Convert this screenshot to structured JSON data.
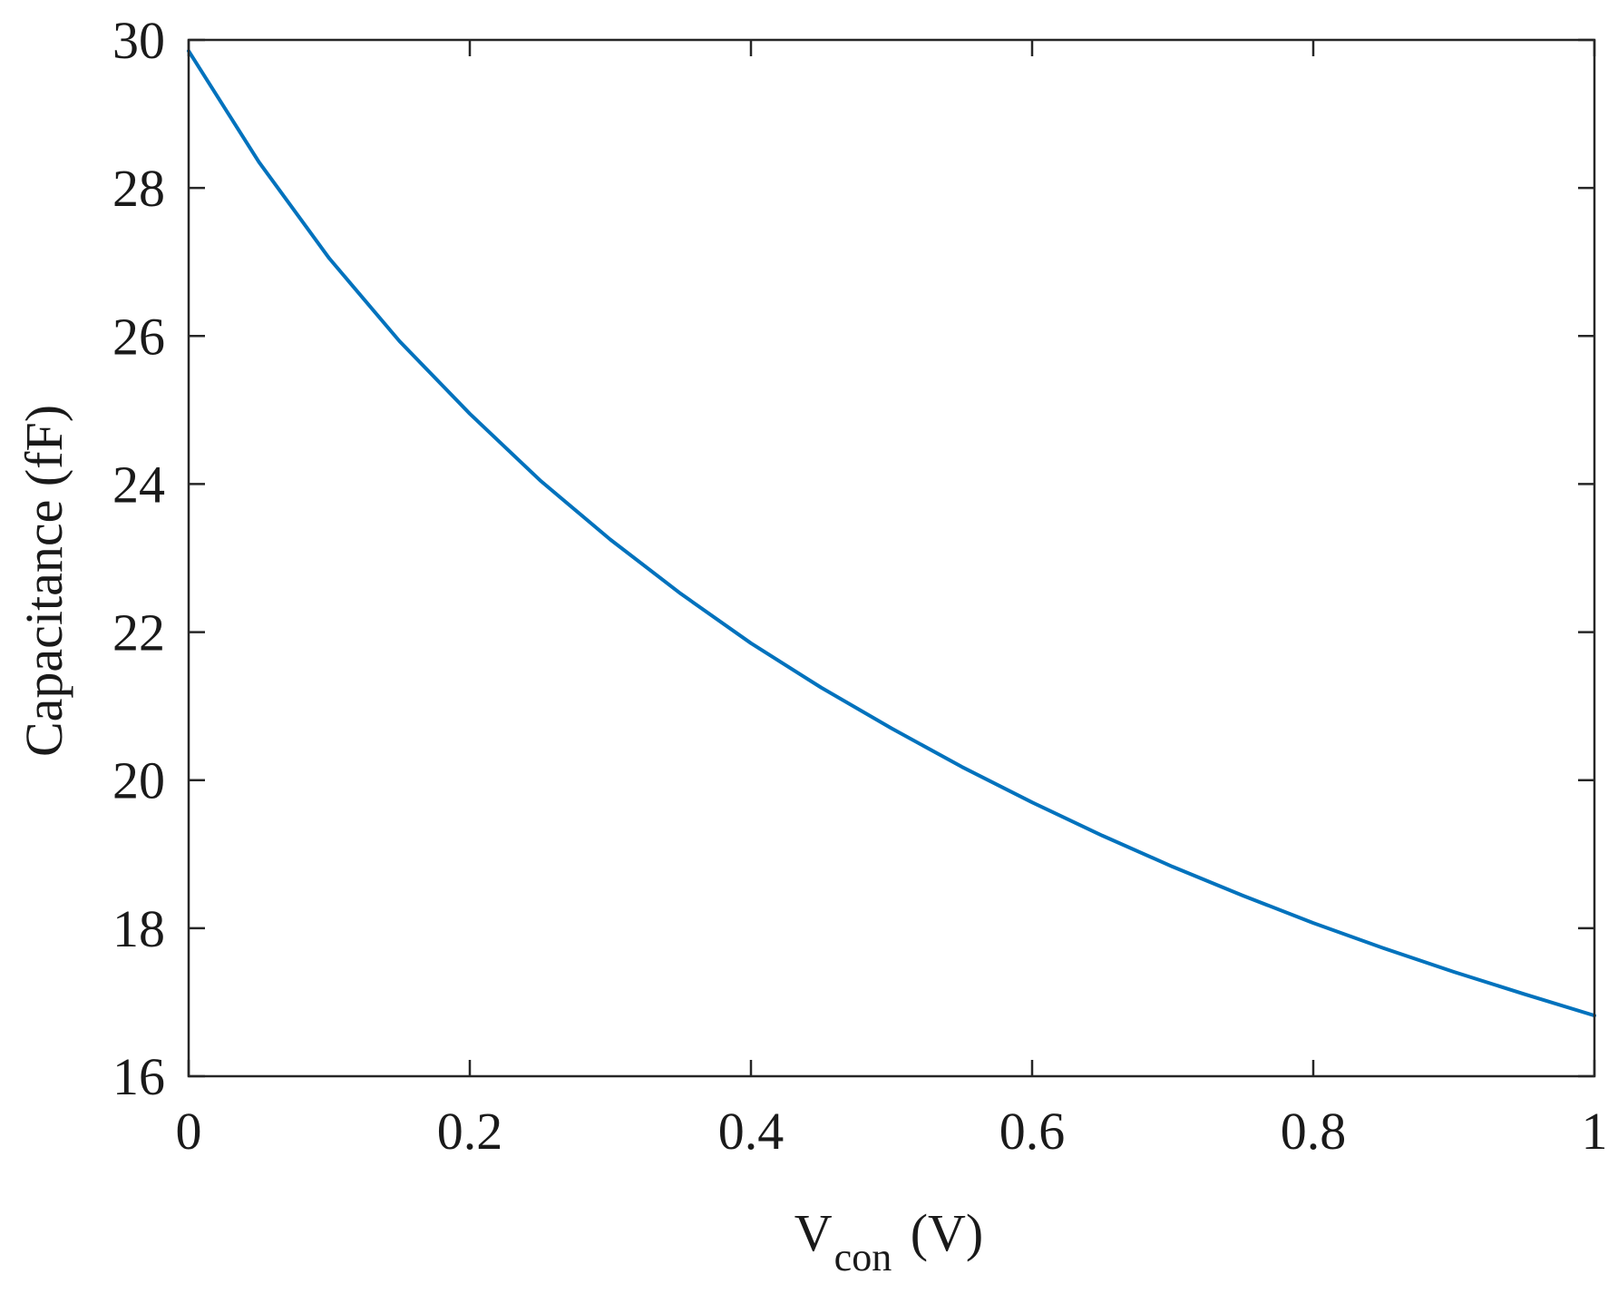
{
  "chart_data": {
    "type": "line",
    "title": "",
    "xlabel": {
      "main": "V",
      "sub": "con",
      "unit": " (V)"
    },
    "ylabel": "Capacitance (fF)",
    "xlim": [
      0,
      1
    ],
    "ylim": [
      16,
      30
    ],
    "xticks": [
      "0",
      "0.2",
      "0.4",
      "0.6",
      "0.8",
      "1"
    ],
    "yticks": [
      "16",
      "18",
      "20",
      "22",
      "24",
      "26",
      "28",
      "30"
    ],
    "grid": false,
    "legend": "none",
    "series": [
      {
        "color": "#0072BD",
        "x": [
          0,
          0.05,
          0.1,
          0.15,
          0.2,
          0.25,
          0.3,
          0.35,
          0.4,
          0.45,
          0.5,
          0.55,
          0.6,
          0.65,
          0.7,
          0.75,
          0.8,
          0.85,
          0.9,
          0.95,
          1.0
        ],
        "y": [
          29.85,
          28.35,
          27.05,
          25.93,
          24.95,
          24.05,
          23.25,
          22.52,
          21.85,
          21.25,
          20.7,
          20.18,
          19.7,
          19.25,
          18.83,
          18.44,
          18.07,
          17.73,
          17.41,
          17.11,
          16.82
        ]
      }
    ]
  }
}
